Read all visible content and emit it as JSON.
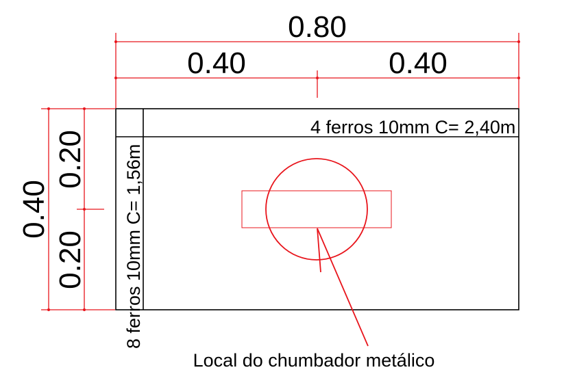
{
  "dimensions": {
    "overall_width": "0.80",
    "half_width_left": "0.40",
    "half_width_right": "0.40",
    "overall_height": "0.40",
    "upper_height": "0.20",
    "lower_height": "0.20"
  },
  "annotations": {
    "top_bars": "4 ferros 10mm C= 2,40m",
    "side_bars": "8 ferros 10mm C= 1,56m",
    "anchor_location": "Local do chumbador metálico"
  },
  "colors": {
    "dimension_lines": "#e8141b",
    "outline": "#000000",
    "anchor": "#e8141b"
  }
}
